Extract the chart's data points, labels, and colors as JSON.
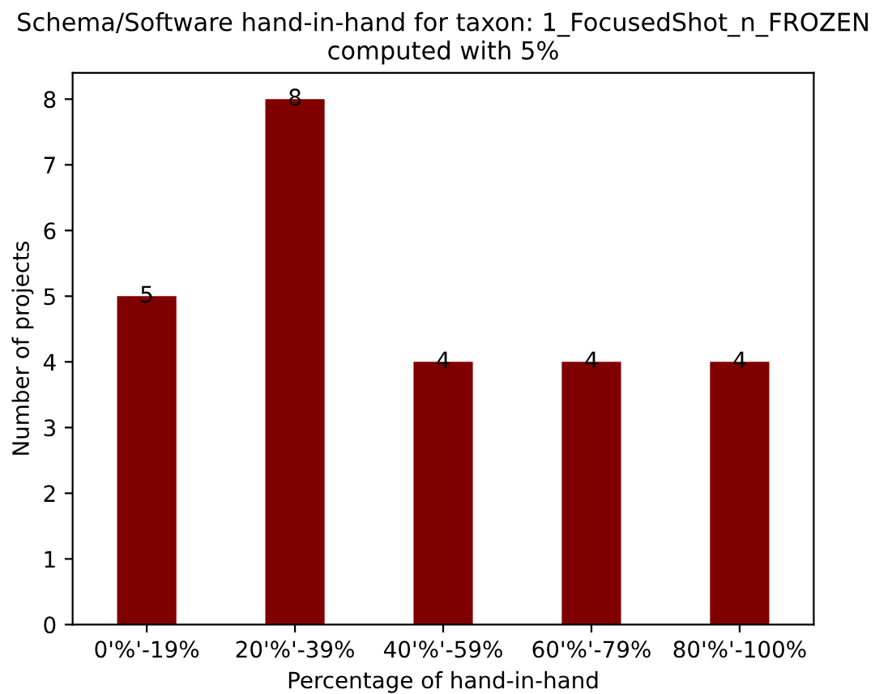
{
  "chart_data": {
    "type": "bar",
    "title": "Schema/Software hand-in-hand for taxon: 1_FocusedShot_n_FROZEN\ncomputed with 5%",
    "xlabel": "Percentage of hand-in-hand",
    "ylabel": "Number of projects",
    "categories": [
      "0'%'-19%",
      "20'%'-39%",
      "40'%'-59%",
      "60'%'-79%",
      "80'%'-100%"
    ],
    "values": [
      5,
      8,
      4,
      4,
      4
    ],
    "color": "#800000",
    "ylim": [
      0,
      8.4
    ],
    "yticks": [
      0,
      1,
      2,
      3,
      4,
      5,
      6,
      7,
      8
    ],
    "grid": false,
    "data_labels": true
  }
}
